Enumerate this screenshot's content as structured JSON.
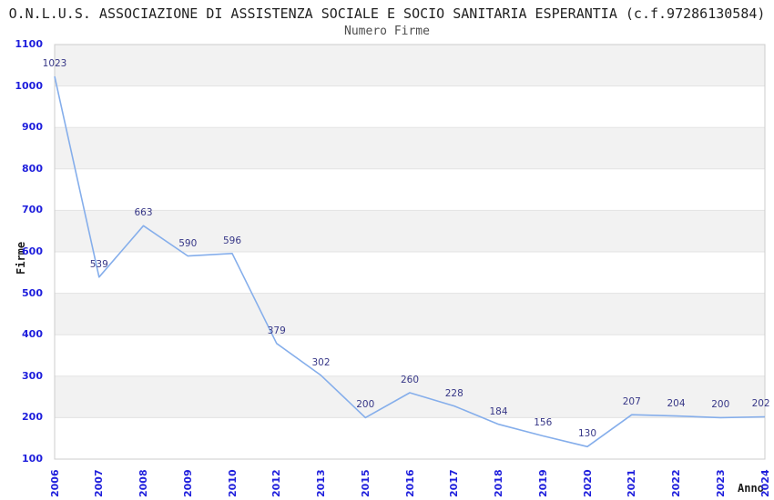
{
  "header": {
    "title": "O.N.L.U.S. ASSOCIAZIONE DI ASSISTENZA SOCIALE E SOCIO SANITARIA ESPERANTIA (c.f.97286130584)",
    "subtitle": "Numero Firme"
  },
  "chart_data": {
    "type": "line",
    "title": "Numero Firme",
    "xlabel": "Anno",
    "ylabel": "Firme",
    "categories": [
      "2006",
      "2007",
      "2008",
      "2009",
      "2010",
      "2012",
      "2013",
      "2015",
      "2016",
      "2017",
      "2018",
      "2019",
      "2020",
      "2021",
      "2022",
      "2023",
      "2024"
    ],
    "values": [
      1023,
      539,
      663,
      590,
      596,
      379,
      302,
      200,
      260,
      228,
      184,
      156,
      130,
      207,
      204,
      200,
      202
    ],
    "yticks": [
      100,
      200,
      300,
      400,
      500,
      600,
      700,
      800,
      900,
      1000,
      1100
    ],
    "ylim": [
      100,
      1100
    ],
    "ytick_step": 100,
    "grid": "horizontal-bands",
    "legend": "none",
    "colors": {
      "line": "#85aeeb",
      "tick_labels": "#1e1edc",
      "data_labels": "#373787",
      "band_gray": "#f2f2f2",
      "gridline": "#e3e3e3",
      "plot_border": "#cccccc"
    }
  }
}
